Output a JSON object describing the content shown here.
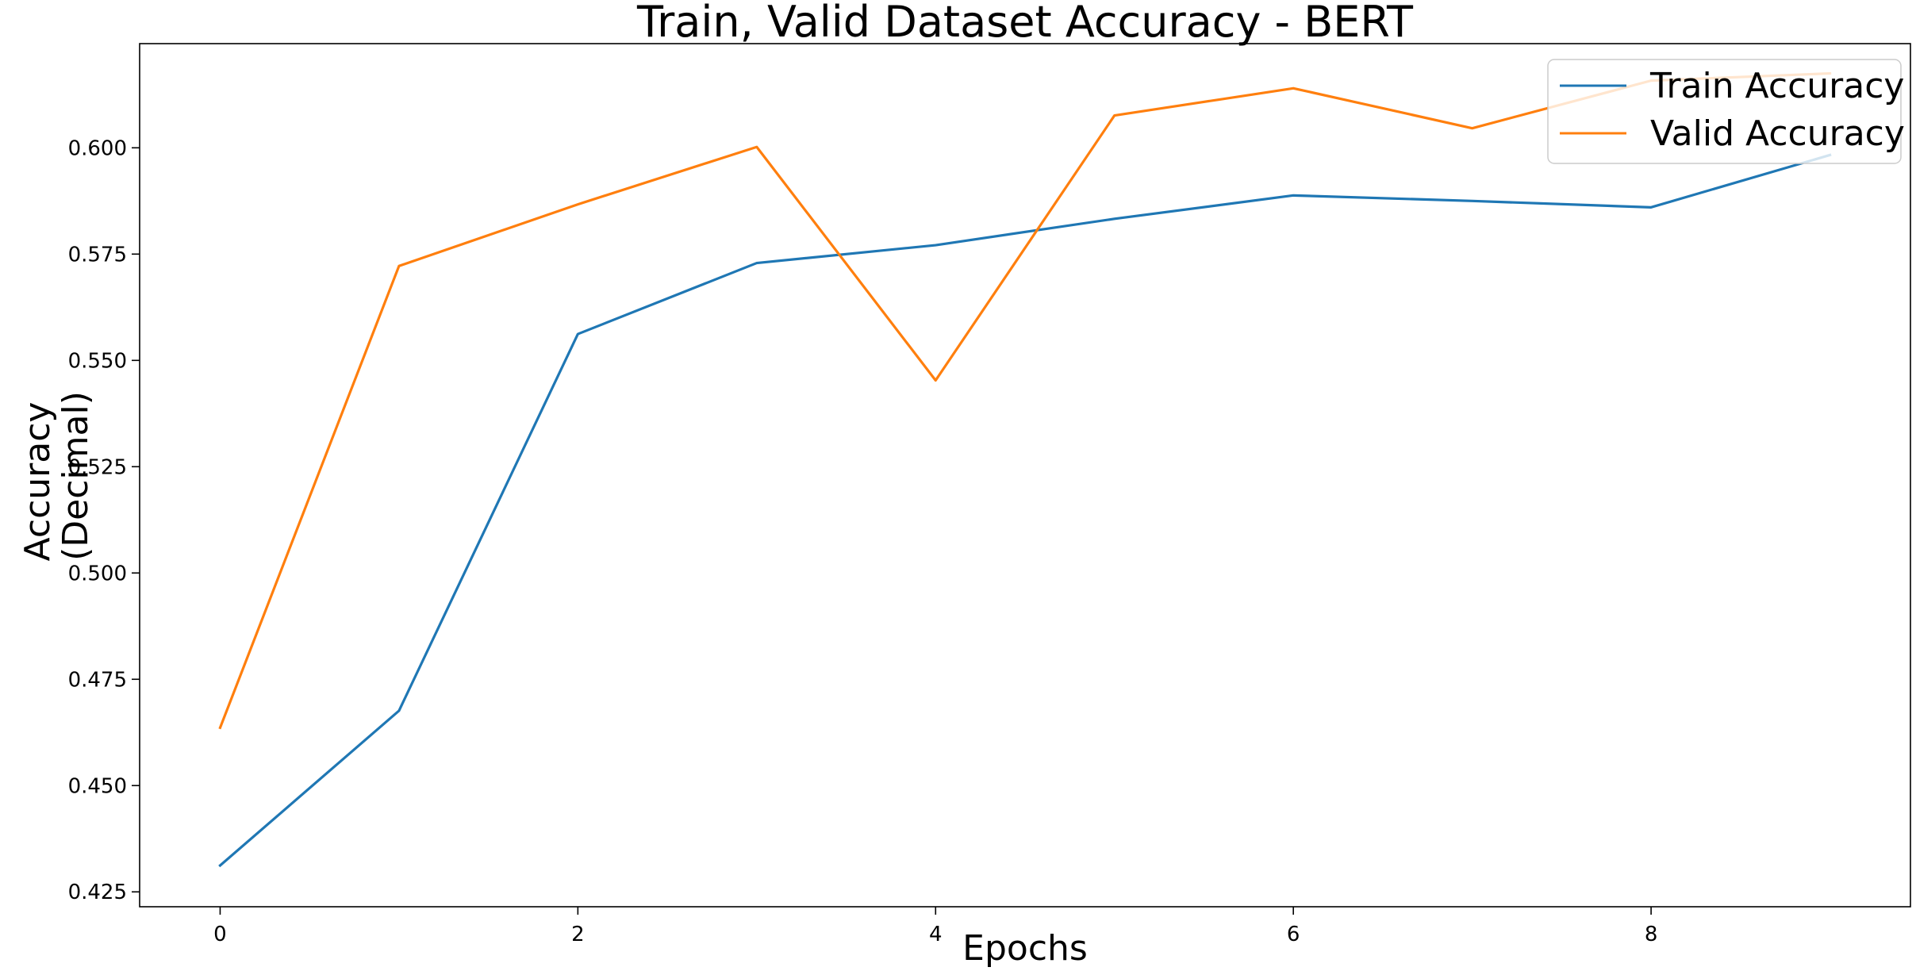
{
  "chart_data": {
    "type": "line",
    "title": "Train, Valid Dataset Accuracy - BERT",
    "xlabel": "Epochs",
    "ylabel_lines": [
      "Accuracy",
      "(Decimal)"
    ],
    "x": [
      0,
      1,
      2,
      3,
      4,
      5,
      6,
      7,
      8,
      9
    ],
    "xlim": [
      -0.45,
      9.45
    ],
    "ylim": [
      0.4215,
      0.6245
    ],
    "xticks": [
      0,
      2,
      4,
      6,
      8
    ],
    "xtick_labels": [
      "0",
      "2",
      "4",
      "6",
      "8"
    ],
    "yticks": [
      0.425,
      0.45,
      0.475,
      0.5,
      0.525,
      0.55,
      0.575,
      0.6
    ],
    "ytick_labels": [
      "0.425",
      "0.450",
      "0.475",
      "0.500",
      "0.525",
      "0.550",
      "0.575",
      "0.600"
    ],
    "grid": false,
    "legend_position": "top-right",
    "series": [
      {
        "name": "Train Accuracy",
        "color": "#1f77b4",
        "values": [
          0.4312,
          0.4676,
          0.5562,
          0.5729,
          0.5771,
          0.5833,
          0.5888,
          0.5875,
          0.586,
          0.5983
        ]
      },
      {
        "name": "Valid Accuracy",
        "color": "#ff7f0e",
        "values": [
          0.4636,
          0.5722,
          0.5867,
          0.6002,
          0.5453,
          0.6076,
          0.614,
          0.6046,
          0.6158,
          0.6175
        ]
      }
    ]
  }
}
